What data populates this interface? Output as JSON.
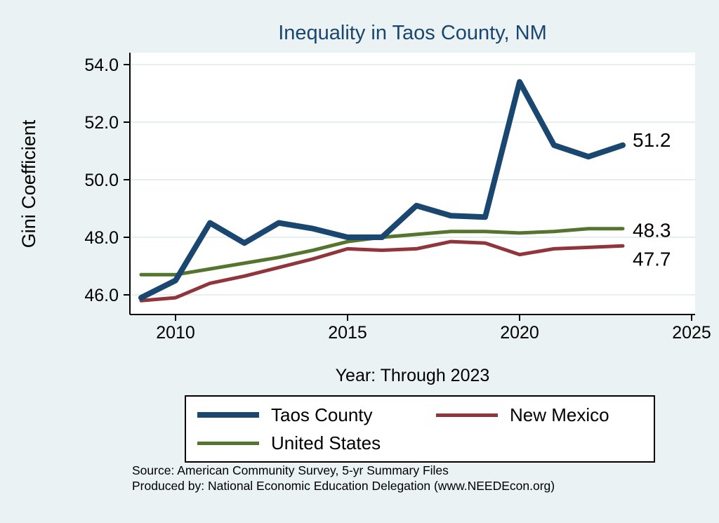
{
  "colors": {
    "background": "#EAF2F3",
    "plot_background": "#FFFFFF",
    "title": "#1A476F",
    "taos_county": "#1A476F",
    "new_mexico": "#90353B",
    "united_states": "#55752F"
  },
  "chart_data": {
    "type": "line",
    "title": "Inequality in Taos County, NM",
    "xlabel": "Year: Through 2023",
    "ylabel": "Gini Coefficient",
    "xlim": [
      2008.7,
      2025.1
    ],
    "ylim": [
      45.3,
      54.5
    ],
    "grid": true,
    "legend_position": "bottom",
    "x": [
      2009,
      2010,
      2011,
      2012,
      2013,
      2014,
      2015,
      2016,
      2017,
      2018,
      2019,
      2020,
      2021,
      2022,
      2023
    ],
    "x_ticks": [
      2010,
      2015,
      2020,
      2025
    ],
    "x_tick_labels": [
      "2010",
      "2015",
      "2020",
      "2025"
    ],
    "y_ticks": [
      46,
      48,
      50,
      52,
      54
    ],
    "y_tick_labels": [
      "46.0",
      "48.0",
      "50.0",
      "52.0",
      "54.0"
    ],
    "series": [
      {
        "name": "Taos County",
        "color": "#1A476F",
        "width": 8,
        "end_label": "51.2",
        "values": [
          45.9,
          46.5,
          48.5,
          47.8,
          48.5,
          48.3,
          48.0,
          48.0,
          49.1,
          48.75,
          48.7,
          53.4,
          51.2,
          50.8,
          51.2
        ]
      },
      {
        "name": "New Mexico",
        "color": "#90353B",
        "width": 5,
        "end_label": "47.7",
        "values": [
          45.8,
          45.9,
          46.4,
          46.65,
          46.95,
          47.25,
          47.6,
          47.55,
          47.6,
          47.85,
          47.8,
          47.4,
          47.6,
          47.65,
          47.7
        ]
      },
      {
        "name": "United States",
        "color": "#55752F",
        "width": 5,
        "end_label": "48.3",
        "values": [
          46.7,
          46.7,
          46.9,
          47.1,
          47.3,
          47.55,
          47.85,
          48.0,
          48.1,
          48.2,
          48.2,
          48.15,
          48.2,
          48.3,
          48.3
        ]
      }
    ]
  },
  "legend": {
    "items": [
      {
        "label": "Taos County",
        "color": "#1A476F"
      },
      {
        "label": "New Mexico",
        "color": "#90353B"
      },
      {
        "label": "United States",
        "color": "#55752F"
      }
    ]
  },
  "source": {
    "line1": "Source: American Community Survey, 5-yr Summary Files",
    "line2": "Produced by: National Economic Education Delegation (www.NEEDEcon.org)"
  }
}
